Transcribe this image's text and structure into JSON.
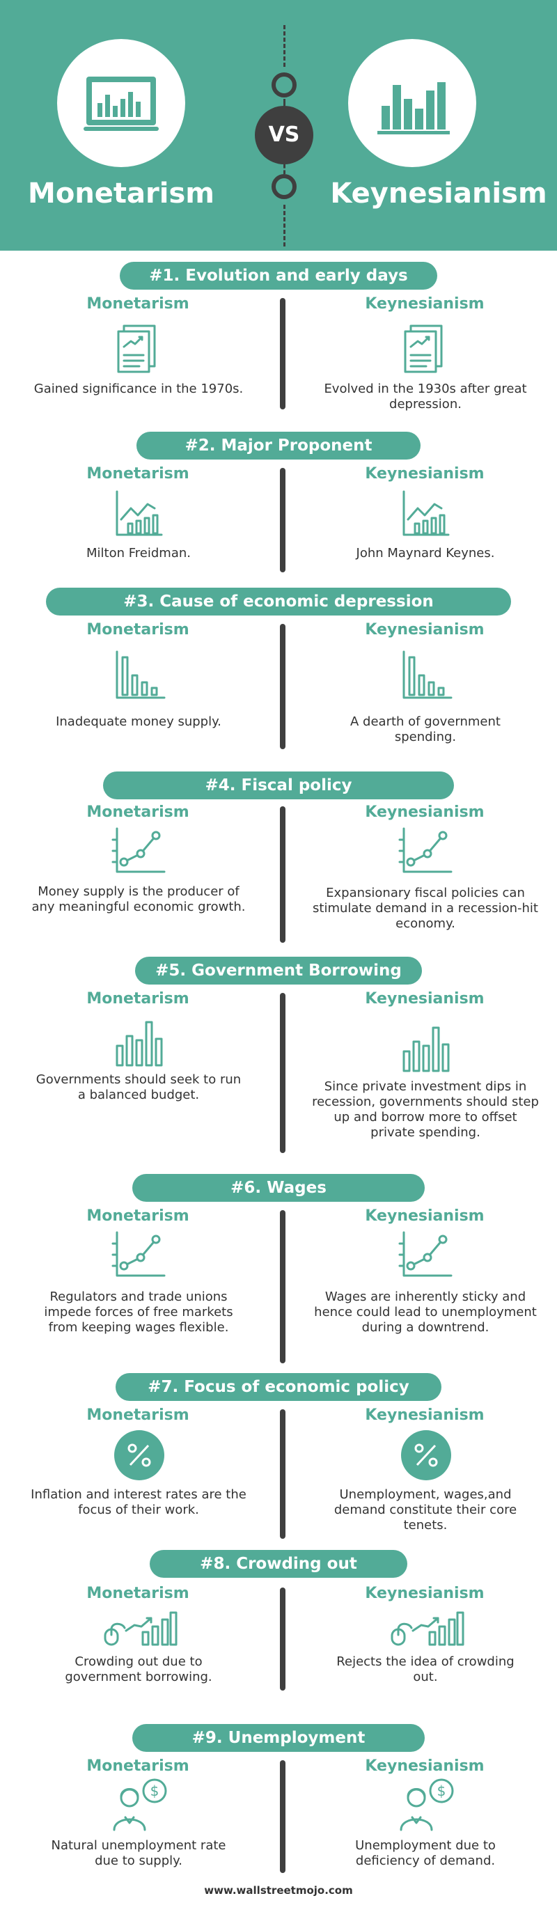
{
  "header": {
    "left_title": "Monetarism",
    "right_title": "Keynesianism",
    "vs": "VS",
    "colors": {
      "teal": "#52ab97",
      "dark": "#3f3f3f"
    },
    "left_icon": "bar-chart-monitor-icon",
    "right_icon": "bar-chart-icon"
  },
  "sections": [
    {
      "title": "#1. Evolution and early days",
      "left_label": "Monetarism",
      "right_label": "Keynesianism",
      "icon": "report-document-icon",
      "left_text": "Gained significance in the 1970s.",
      "right_text": "Evolved in the 1930s after great depression."
    },
    {
      "title": "#2. Major Proponent",
      "left_label": "Monetarism",
      "right_label": "Keynesianism",
      "icon": "growth-chart-icon",
      "left_text": "Milton Freidman.",
      "right_text": "John Maynard Keynes."
    },
    {
      "title": "#3. Cause of economic depression",
      "left_label": "Monetarism",
      "right_label": "Keynesianism",
      "icon": "declining-bars-icon",
      "left_text": "Inadequate money supply.",
      "right_text": "A dearth of government spending."
    },
    {
      "title": "#4. Fiscal policy",
      "left_label": "Monetarism",
      "right_label": "Keynesianism",
      "icon": "line-graph-icon",
      "left_text": "Money supply is the producer of any meaningful economic growth.",
      "right_text": "Expansionary fiscal policies can stimulate demand in a recession-hit economy."
    },
    {
      "title": "#5. Government Borrowing",
      "left_label": "Monetarism",
      "right_label": "Keynesianism",
      "icon": "bars-icon",
      "left_text": "Governments should seek to run a balanced budget.",
      "right_text": "Since private investment dips in recession, governments should step up and borrow more to offset private spending."
    },
    {
      "title": "#6. Wages",
      "left_label": "Monetarism",
      "right_label": "Keynesianism",
      "icon": "line-graph-icon",
      "left_text": "Regulators and trade unions impede forces of free markets from keeping wages flexible.",
      "right_text": "Wages are inherently sticky and hence could lead to unemployment during a downtrend."
    },
    {
      "title": "#7. Focus of economic policy",
      "left_label": "Monetarism",
      "right_label": "Keynesianism",
      "icon": "percent-icon",
      "left_text": "Inflation and interest rates are the focus of their work.",
      "right_text": "Unemployment, wages,and demand constitute their core tenets."
    },
    {
      "title": "#8. Crowding out",
      "left_label": "Monetarism",
      "right_label": "Keynesianism",
      "icon": "mouse-growth-icon",
      "left_text": "Crowding out due to government borrowing.",
      "right_text": "Rejects the idea of crowding out."
    },
    {
      "title": "#9. Unemployment",
      "left_label": "Monetarism",
      "right_label": "Keynesianism",
      "icon": "person-dollar-icon",
      "left_text": "Natural unemployment rate due to supply.",
      "right_text": "Unemployment due to deficiency of demand."
    }
  ],
  "footer": {
    "text": "www.wallstreetmojo.com"
  }
}
